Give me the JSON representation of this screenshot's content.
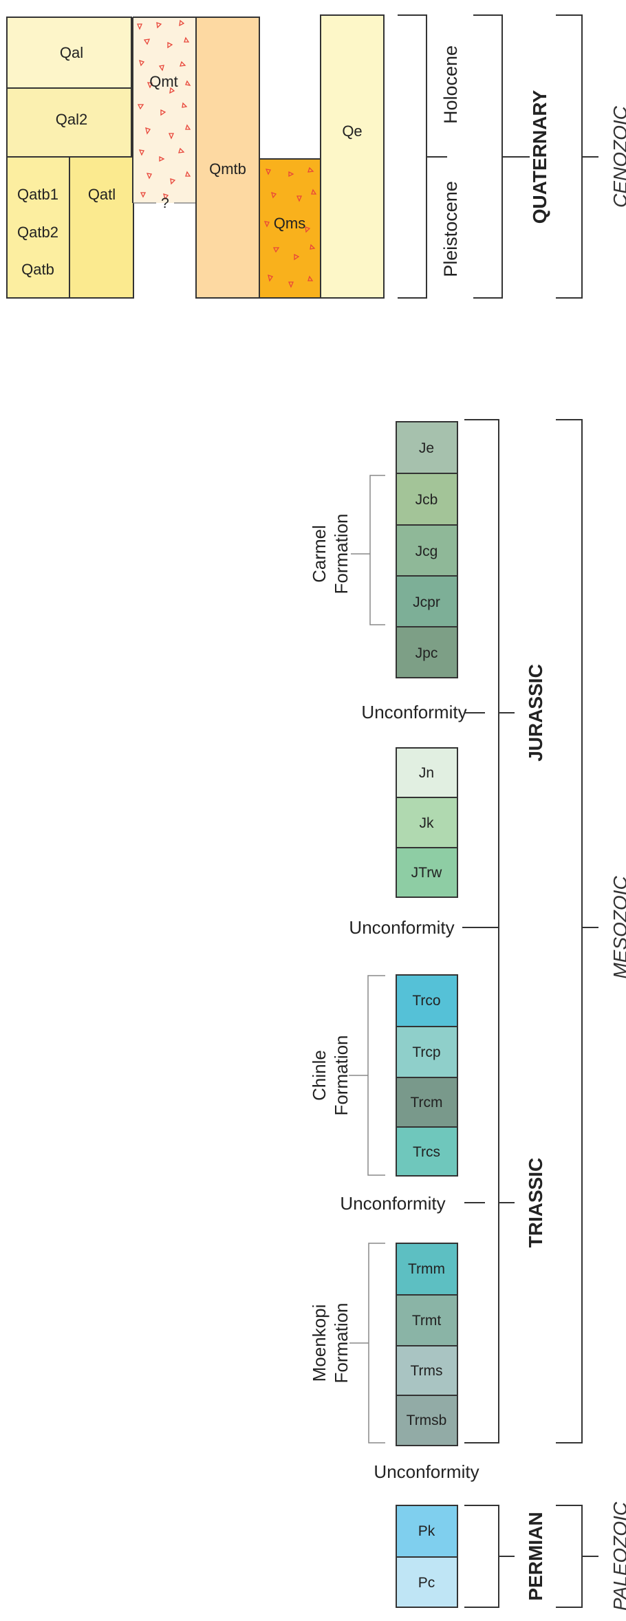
{
  "quaternary_units": {
    "qal": "Qal",
    "qal2": "Qal2",
    "qatb1": "Qatb1",
    "qatb2": "Qatb2",
    "qatb": "Qatb",
    "qatl": "Qatl",
    "qmt": "Qmt",
    "query": "?",
    "qmtb": "Qmtb",
    "qms": "Qms",
    "qe": "Qe"
  },
  "epochs": {
    "holocene": "Holocene",
    "pleistocene": "Pleistocene"
  },
  "periods": {
    "quaternary": "QUATERNARY",
    "jurassic": "JURASSIC",
    "triassic": "TRIASSIC",
    "permian": "PERMIAN"
  },
  "eras": {
    "cenozoic": "CENOZOIC",
    "mesozoic": "MESOZOIC",
    "paleozoic": "PALEOZOIC"
  },
  "formations": {
    "carmel_1": "Carmel",
    "carmel_2": "Formation",
    "chinle_1": "Chinle",
    "chinle_2": "Formation",
    "moenkopi_1": "Moenkopi",
    "moenkopi_2": "Formation"
  },
  "unconformities": {
    "u1": "Unconformity",
    "u2": "Unconformity",
    "u3": "Unconformity",
    "u4": "Unconformity"
  },
  "stack_units": {
    "je": "Je",
    "jcb": "Jcb",
    "jcg": "Jcg",
    "jcpr": "Jcpr",
    "jpc": "Jpc",
    "jn": "Jn",
    "jk": "Jk",
    "jtrw": "JTrw",
    "trco": "Trco",
    "trcp": "Trcp",
    "trcm": "Trcm",
    "trcs": "Trcs",
    "trmm": "Trmm",
    "trmt": "Trmt",
    "trms": "Trms",
    "trmsb": "Trmsb",
    "pk": "Pk",
    "pc": "Pc"
  },
  "colors": {
    "qal": "#fdf5c9",
    "qal2": "#fbf0b0",
    "qatb": "#fceea0",
    "qatl": "#fbea8f",
    "qmt": "#fdf2dd",
    "qmtb": "#fdd9a2",
    "qms": "#f9b11c",
    "qe": "#fdf7c8",
    "je": "#a6c1ad",
    "jcb": "#a3c498",
    "jcg": "#8fb898",
    "jcpr": "#7daf97",
    "jpc": "#7d9f86",
    "jn": "#e1efe1",
    "jk": "#b0d9b0",
    "jtrw": "#8ecda4",
    "trco": "#55c1d7",
    "trcp": "#8fcfca",
    "trcm": "#79998b",
    "trcs": "#6fc7bc",
    "trmm": "#5dbfc2",
    "trmt": "#8ab4a6",
    "trms": "#a9c4c2",
    "trmsb": "#92aba6",
    "pk": "#7fcfee",
    "pc": "#bfe5f5",
    "triangle": "#e8463a"
  }
}
